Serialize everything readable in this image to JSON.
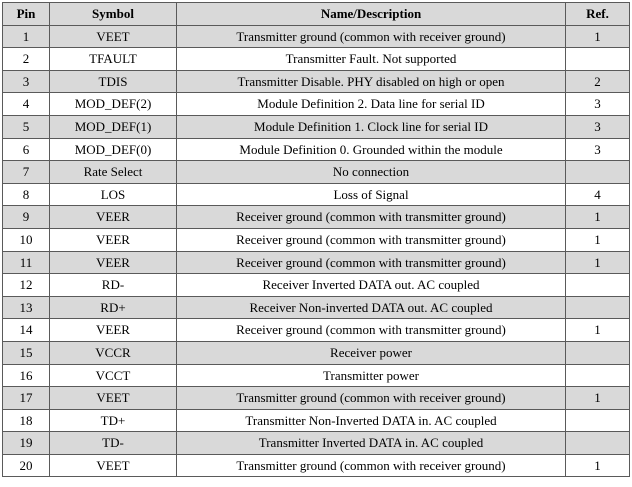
{
  "table": {
    "headers": {
      "pin": "Pin",
      "symbol": "Symbol",
      "description": "Name/Description",
      "ref": "Ref."
    },
    "rows": [
      {
        "pin": "1",
        "symbol": "VEET",
        "description": "Transmitter ground (common with receiver ground)",
        "ref": "1"
      },
      {
        "pin": "2",
        "symbol": "TFAULT",
        "description": "Transmitter Fault. Not supported",
        "ref": ""
      },
      {
        "pin": "3",
        "symbol": "TDIS",
        "description": "Transmitter Disable. PHY disabled on high or open",
        "ref": "2"
      },
      {
        "pin": "4",
        "symbol": "MOD_DEF(2)",
        "description": "Module Definition 2. Data line for serial ID",
        "ref": "3"
      },
      {
        "pin": "5",
        "symbol": "MOD_DEF(1)",
        "description": "Module Definition 1. Clock line for serial ID",
        "ref": "3"
      },
      {
        "pin": "6",
        "symbol": "MOD_DEF(0)",
        "description": "Module Definition 0. Grounded within the module",
        "ref": "3"
      },
      {
        "pin": "7",
        "symbol": "Rate Select",
        "description": "No connection",
        "ref": ""
      },
      {
        "pin": "8",
        "symbol": "LOS",
        "description": "Loss of Signal",
        "ref": "4"
      },
      {
        "pin": "9",
        "symbol": "VEER",
        "description": "Receiver ground (common with transmitter ground)",
        "ref": "1"
      },
      {
        "pin": "10",
        "symbol": "VEER",
        "description": "Receiver ground (common with transmitter ground)",
        "ref": "1"
      },
      {
        "pin": "11",
        "symbol": "VEER",
        "description": "Receiver ground (common with transmitter ground)",
        "ref": "1"
      },
      {
        "pin": "12",
        "symbol": "RD-",
        "description": "Receiver Inverted DATA out. AC coupled",
        "ref": ""
      },
      {
        "pin": "13",
        "symbol": "RD+",
        "description": "Receiver Non-inverted DATA out. AC coupled",
        "ref": ""
      },
      {
        "pin": "14",
        "symbol": "VEER",
        "description": "Receiver ground (common with transmitter ground)",
        "ref": "1"
      },
      {
        "pin": "15",
        "symbol": "VCCR",
        "description": "Receiver power",
        "ref": ""
      },
      {
        "pin": "16",
        "symbol": "VCCT",
        "description": "Transmitter power",
        "ref": ""
      },
      {
        "pin": "17",
        "symbol": "VEET",
        "description": "Transmitter ground (common with receiver ground)",
        "ref": "1"
      },
      {
        "pin": "18",
        "symbol": "TD+",
        "description": "Transmitter Non-Inverted DATA in. AC coupled",
        "ref": ""
      },
      {
        "pin": "19",
        "symbol": "TD-",
        "description": "Transmitter Inverted DATA in. AC coupled",
        "ref": ""
      },
      {
        "pin": "20",
        "symbol": "VEET",
        "description": "Transmitter ground (common with receiver ground)",
        "ref": "1"
      }
    ]
  }
}
